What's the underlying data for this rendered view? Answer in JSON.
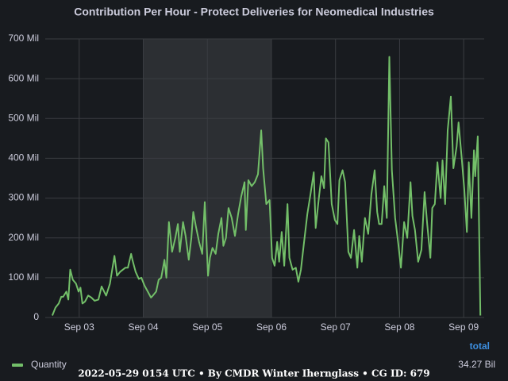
{
  "chart_data": {
    "type": "line",
    "title": "Contribution Per Hour - Protect Deliveries for Neomedical Industries",
    "x": [
      2.58,
      2.63,
      2.68,
      2.72,
      2.75,
      2.8,
      2.83,
      2.86,
      2.9,
      2.95,
      2.99,
      3.02,
      3.05,
      3.09,
      3.14,
      3.19,
      3.24,
      3.3,
      3.35,
      3.38,
      3.42,
      3.48,
      3.55,
      3.59,
      3.64,
      3.72,
      3.76,
      3.81,
      3.83,
      3.88,
      3.93,
      3.97,
      4.02,
      4.07,
      4.12,
      4.15,
      4.2,
      4.24,
      4.28,
      4.33,
      4.36,
      4.4,
      4.45,
      4.5,
      4.54,
      4.57,
      4.62,
      4.66,
      4.71,
      4.75,
      4.78,
      4.82,
      4.87,
      4.92,
      4.96,
      5.01,
      5.04,
      5.08,
      5.13,
      5.17,
      5.22,
      5.25,
      5.29,
      5.33,
      5.38,
      5.43,
      5.48,
      5.53,
      5.58,
      5.6,
      5.64,
      5.69,
      5.74,
      5.79,
      5.84,
      5.87,
      5.92,
      5.97,
      6.01,
      6.05,
      6.09,
      6.12,
      6.16,
      6.2,
      6.25,
      6.28,
      6.33,
      6.38,
      6.42,
      6.46,
      6.51,
      6.56,
      6.61,
      6.66,
      6.69,
      6.74,
      6.78,
      6.82,
      6.85,
      6.89,
      6.94,
      6.99,
      7.03,
      7.06,
      7.11,
      7.15,
      7.2,
      7.24,
      7.29,
      7.34,
      7.37,
      7.41,
      7.46,
      7.51,
      7.56,
      7.61,
      7.65,
      7.68,
      7.72,
      7.76,
      7.8,
      7.84,
      7.88,
      7.93,
      7.98,
      8.02,
      8.07,
      8.12,
      8.17,
      8.2,
      8.24,
      8.29,
      8.34,
      8.39,
      8.43,
      8.48,
      8.51,
      8.55,
      8.59,
      8.64,
      8.67,
      8.71,
      8.75,
      8.8,
      8.84,
      8.89,
      8.92,
      8.97,
      9.01,
      9.05,
      9.08,
      9.12,
      9.16,
      9.18,
      9.22,
      9.26
    ],
    "series": [
      {
        "name": "Quantity",
        "color": "#73bf69",
        "values": [
          5,
          25,
          35,
          52,
          52,
          65,
          45,
          120,
          95,
          85,
          65,
          75,
          35,
          40,
          55,
          50,
          42,
          45,
          78,
          68,
          55,
          85,
          155,
          105,
          115,
          125,
          125,
          160,
          145,
          115,
          97,
          100,
          80,
          65,
          50,
          55,
          65,
          95,
          100,
          145,
          100,
          240,
          165,
          200,
          235,
          165,
          240,
          205,
          145,
          200,
          265,
          230,
          190,
          160,
          290,
          105,
          150,
          175,
          160,
          210,
          250,
          180,
          200,
          275,
          250,
          205,
          260,
          305,
          340,
          220,
          345,
          330,
          340,
          360,
          470,
          375,
          285,
          295,
          150,
          130,
          190,
          140,
          215,
          130,
          285,
          150,
          120,
          125,
          90,
          120,
          190,
          260,
          310,
          365,
          225,
          300,
          355,
          325,
          450,
          440,
          285,
          245,
          235,
          345,
          370,
          340,
          165,
          150,
          220,
          125,
          205,
          140,
          250,
          210,
          310,
          370,
          265,
          235,
          235,
          330,
          250,
          655,
          370,
          250,
          185,
          125,
          240,
          200,
          340,
          255,
          220,
          140,
          170,
          315,
          235,
          150,
          275,
          285,
          390,
          300,
          395,
          285,
          470,
          555,
          375,
          430,
          490,
          400,
          320,
          215,
          390,
          250,
          420,
          355,
          455,
          5
        ]
      }
    ],
    "xlim": [
      2.47,
      9.32
    ],
    "xticks": [
      {
        "value": 3,
        "label": "Sep 03"
      },
      {
        "value": 4,
        "label": "Sep 04"
      },
      {
        "value": 5,
        "label": "Sep 05"
      },
      {
        "value": 6,
        "label": "Sep 06"
      },
      {
        "value": 7,
        "label": "Sep 07"
      },
      {
        "value": 8,
        "label": "Sep 08"
      },
      {
        "value": 9,
        "label": "Sep 09"
      }
    ],
    "ylim": [
      0,
      700
    ],
    "yticks": [
      0,
      {
        "value": 100,
        "label": "100 Mil"
      },
      {
        "value": 200,
        "label": "200 Mil"
      },
      {
        "value": 300,
        "label": "300 Mil"
      },
      {
        "value": 400,
        "label": "400 Mil"
      },
      {
        "value": 500,
        "label": "500 Mil"
      },
      {
        "value": 600,
        "label": "600 Mil"
      },
      {
        "value": 700,
        "label": "700 Mil"
      }
    ],
    "grid": true,
    "shaded_region": [
      4,
      6
    ],
    "legend": {
      "header": "total",
      "total": "34.27 Bil"
    },
    "footer": "2022-05-29 0154 UTC • By CMDR Winter Ihernglass • CG ID: 679"
  }
}
